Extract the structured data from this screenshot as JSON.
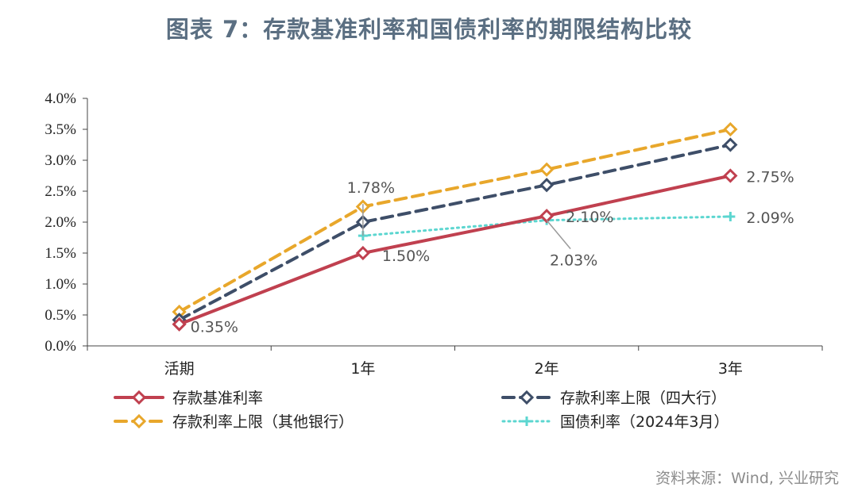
{
  "title": "图表 7：存款基准利率和国债利率的期限结构比较",
  "source": "资料来源：Wind, 兴业研究",
  "chart_data": {
    "type": "line",
    "title": "图表 7：存款基准利率和国债利率的期限结构比较",
    "categories": [
      "活期",
      "1年",
      "2年",
      "3年"
    ],
    "ylim": [
      0,
      4.0
    ],
    "y_ticks": [
      "0.0%",
      "0.5%",
      "1.0%",
      "1.5%",
      "2.0%",
      "2.5%",
      "3.0%",
      "3.5%",
      "4.0%"
    ],
    "y_tick_values": [
      0,
      0.5,
      1.0,
      1.5,
      2.0,
      2.5,
      3.0,
      3.5,
      4.0
    ],
    "grid": false,
    "legend_position": "bottom",
    "series": [
      {
        "name": "存款基准利率",
        "values": [
          0.35,
          1.5,
          2.1,
          2.75
        ],
        "color": "#c0404f",
        "style": "solid",
        "marker": "diamond"
      },
      {
        "name": "存款利率上限（四大行）",
        "values": [
          0.42,
          2.0,
          2.6,
          3.25
        ],
        "color": "#3e4e68",
        "style": "dashed",
        "marker": "diamond"
      },
      {
        "name": "存款利率上限（其他银行）",
        "values": [
          0.55,
          2.25,
          2.85,
          3.5
        ],
        "color": "#e8a72b",
        "style": "dashed",
        "marker": "diamond"
      },
      {
        "name": "国债利率（2024年3月）",
        "values": [
          null,
          1.78,
          2.03,
          2.09
        ],
        "color": "#5cd6d0",
        "style": "dotted",
        "marker": "cross"
      }
    ],
    "annotations": [
      {
        "text": "0.35%",
        "series": 0,
        "index": 0
      },
      {
        "text": "1.50%",
        "series": 0,
        "index": 1
      },
      {
        "text": "2.10%",
        "series": 0,
        "index": 2
      },
      {
        "text": "2.75%",
        "series": 0,
        "index": 3
      },
      {
        "text": "1.78%",
        "series": 3,
        "index": 1
      },
      {
        "text": "2.03%",
        "series": 3,
        "index": 2
      },
      {
        "text": "2.09%",
        "series": 3,
        "index": 3
      }
    ]
  }
}
